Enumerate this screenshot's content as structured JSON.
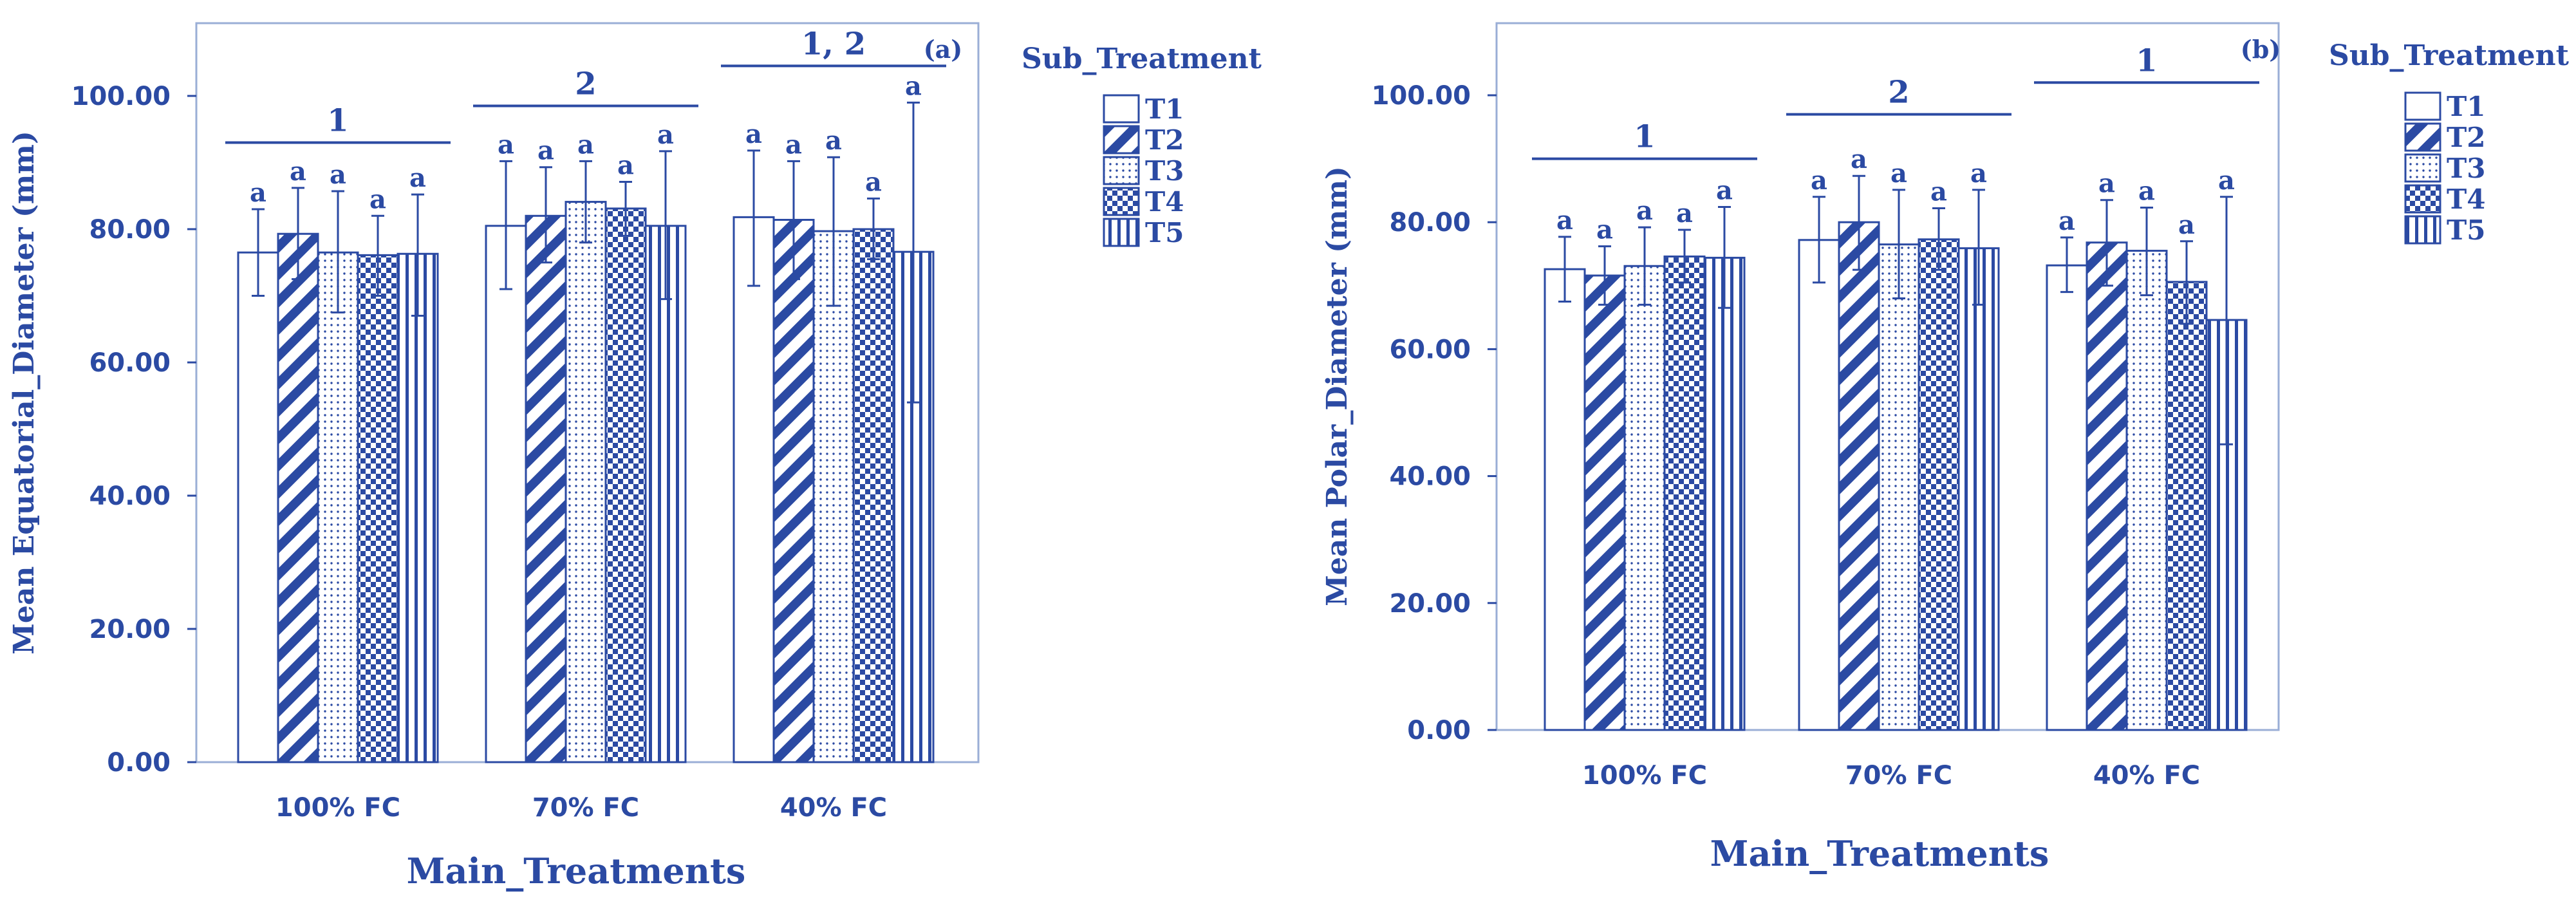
{
  "colors": {
    "primary": "#2b4aa3",
    "frame": "#9aaed6",
    "background": "#ffffff"
  },
  "legend": {
    "title": "Sub_Treatment",
    "entries": [
      "T1",
      "T2",
      "T3",
      "T4",
      "T5"
    ],
    "patterns": [
      "solid",
      "diagonal",
      "dotted",
      "checker",
      "vertical"
    ]
  },
  "chart_data": [
    {
      "type": "bar",
      "panel_label": "(a)",
      "title": "",
      "xlabel": "Main_Treatments",
      "ylabel": "Mean Equatorial_Diameter (mm)",
      "ylim": [
        0,
        110
      ],
      "yticks": [
        0,
        20,
        40,
        60,
        80,
        100
      ],
      "ytick_labels": [
        "0.00",
        "20.00",
        "40.00",
        "60.00",
        "80.00",
        "100.00"
      ],
      "categories": [
        "100% FC",
        "70% FC",
        "40% FC"
      ],
      "series": [
        {
          "name": "T1",
          "values": [
            76.5,
            80.5,
            81.8
          ],
          "err_high": [
            83.0,
            90.2,
            91.8
          ],
          "err_low": [
            70.0,
            71.0,
            71.5
          ],
          "labels": [
            "a",
            "a",
            "a"
          ]
        },
        {
          "name": "T2",
          "values": [
            79.3,
            82.0,
            81.4
          ],
          "err_high": [
            86.2,
            89.3,
            90.2
          ],
          "err_low": [
            72.5,
            75.0,
            72.5
          ],
          "labels": [
            "a",
            "a",
            "a"
          ]
        },
        {
          "name": "T3",
          "values": [
            76.5,
            84.1,
            79.7
          ],
          "err_high": [
            85.7,
            90.2,
            90.8
          ],
          "err_low": [
            67.5,
            78.0,
            68.5
          ],
          "labels": [
            "a",
            "a",
            "a"
          ]
        },
        {
          "name": "T4",
          "values": [
            76.1,
            83.1,
            80.0
          ],
          "err_high": [
            82.0,
            87.1,
            84.6
          ],
          "err_low": [
            70.0,
            79.0,
            75.5
          ],
          "labels": [
            "a",
            "a",
            "a"
          ]
        },
        {
          "name": "T5",
          "values": [
            76.3,
            80.5,
            76.6
          ],
          "err_high": [
            85.2,
            91.7,
            99.0
          ],
          "err_low": [
            67.0,
            69.5,
            54.0
          ],
          "labels": [
            "a",
            "a",
            "a"
          ]
        }
      ],
      "group_annotations": [
        {
          "category": "100% FC",
          "label": "1",
          "level": 93.0
        },
        {
          "category": "70% FC",
          "label": "2",
          "level": 98.5
        },
        {
          "category": "40% FC",
          "label": "1, 2",
          "level": 104.5
        }
      ]
    },
    {
      "type": "bar",
      "panel_label": "(b)",
      "title": "",
      "xlabel": "Main_Treatments",
      "ylabel": "Mean Polar_Diameter (mm)",
      "ylim": [
        0,
        110
      ],
      "yticks": [
        0,
        20,
        40,
        60,
        80,
        100
      ],
      "ytick_labels": [
        "0.00",
        "20.00",
        "40.00",
        "60.00",
        "80.00",
        "100.00"
      ],
      "categories": [
        "100% FC",
        "70% FC",
        "40% FC"
      ],
      "series": [
        {
          "name": "T1",
          "values": [
            72.6,
            77.2,
            73.2
          ],
          "err_high": [
            77.7,
            84.0,
            77.6
          ],
          "err_low": [
            67.5,
            70.5,
            69.0
          ],
          "labels": [
            "a",
            "a",
            "a"
          ]
        },
        {
          "name": "T2",
          "values": [
            71.6,
            80.0,
            76.8
          ],
          "err_high": [
            76.2,
            87.3,
            83.5
          ],
          "err_low": [
            67.0,
            72.5,
            70.0
          ],
          "labels": [
            "a",
            "a",
            "a"
          ]
        },
        {
          "name": "T3",
          "values": [
            73.1,
            76.5,
            75.5
          ],
          "err_high": [
            79.2,
            85.1,
            82.3
          ],
          "err_low": [
            67.0,
            68.0,
            68.5
          ],
          "labels": [
            "a",
            "a",
            "a"
          ]
        },
        {
          "name": "T4",
          "values": [
            74.6,
            77.3,
            70.6
          ],
          "err_high": [
            78.8,
            82.2,
            77.0
          ],
          "err_low": [
            70.5,
            72.5,
            64.0
          ],
          "labels": [
            "a",
            "a",
            "a"
          ]
        },
        {
          "name": "T5",
          "values": [
            74.4,
            75.9,
            64.6
          ],
          "err_high": [
            82.4,
            85.1,
            84.0
          ],
          "err_low": [
            66.5,
            67.0,
            45.0
          ],
          "labels": [
            "a",
            "a",
            "a"
          ]
        }
      ],
      "group_annotations": [
        {
          "category": "100% FC",
          "label": "1",
          "level": 90.0
        },
        {
          "category": "70% FC",
          "label": "2",
          "level": 97.0
        },
        {
          "category": "40% FC",
          "label": "1",
          "level": 102.0
        }
      ]
    }
  ]
}
